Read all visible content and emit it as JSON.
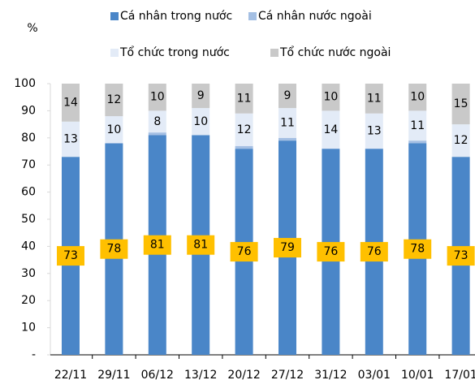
{
  "chart_data": {
    "type": "stacked_bar",
    "y_label": "%",
    "categories": [
      "22/11",
      "29/11",
      "06/12",
      "13/12",
      "20/12",
      "27/12",
      "31/12",
      "03/01",
      "10/01",
      "17/01"
    ],
    "series": [
      {
        "name": "Cá nhân trong nước",
        "color": "#4a86c8",
        "labels": true,
        "values": [
          73,
          78,
          81,
          81,
          76,
          79,
          76,
          76,
          78,
          73
        ]
      },
      {
        "name": "Cá nhân nước ngoài",
        "color": "#a4bfe3",
        "labels": false,
        "values": [
          0,
          0,
          1,
          0,
          1,
          1,
          0,
          0,
          1,
          0
        ]
      },
      {
        "name": "Tổ chức trong nước",
        "color": "#e3ebf7",
        "labels": true,
        "values": [
          13,
          10,
          8,
          10,
          12,
          11,
          14,
          13,
          11,
          12
        ]
      },
      {
        "name": "Tổ chức nước ngoài",
        "color": "#c9c9c9",
        "labels": true,
        "values": [
          14,
          12,
          10,
          9,
          11,
          9,
          10,
          11,
          10,
          15
        ]
      }
    ],
    "ylim": [
      0,
      100
    ],
    "yticks": [
      {
        "value": 0,
        "label": "-"
      },
      10,
      20,
      30,
      40,
      50,
      60,
      70,
      80,
      90,
      100
    ],
    "highlight_color": "#ffc000"
  }
}
